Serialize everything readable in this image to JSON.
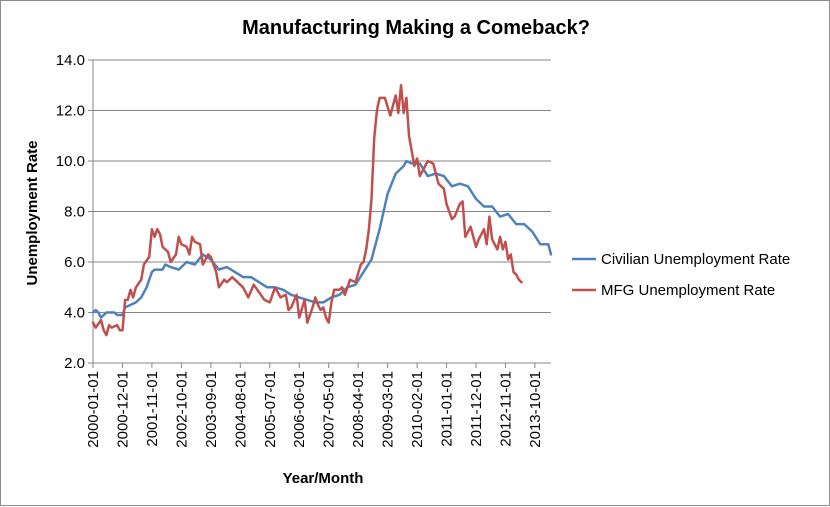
{
  "chart_data": {
    "type": "line",
    "title": "Manufacturing Making a Comeback?",
    "xlabel": "Year/Month",
    "ylabel": "Unemployment Rate",
    "ylim": [
      2.0,
      14.0
    ],
    "y_ticks": [
      "2.0",
      "4.0",
      "6.0",
      "8.0",
      "10.0",
      "12.0",
      "14.0"
    ],
    "x_tick_labels": [
      "2000-01-01",
      "2000-12-01",
      "2001-11-01",
      "2002-10-01",
      "2003-09-01",
      "2004-08-01",
      "2005-07-01",
      "2006-06-01",
      "2007-05-01",
      "2008-04-01",
      "2009-03-01",
      "2010-02-01",
      "2011-01-01",
      "2011-12-01",
      "2012-11-01",
      "2013-10-01"
    ],
    "x_start": "2000-01",
    "x_end": "2014-04",
    "grid": "horizontal",
    "legend_position": "right",
    "series": [
      {
        "name": "Civilian Unemployment Rate",
        "color": "#4f81bd",
        "points": [
          [
            "2000-01",
            4.0
          ],
          [
            "2000-02",
            4.1
          ],
          [
            "2000-03",
            4.0
          ],
          [
            "2000-04",
            3.8
          ],
          [
            "2000-06",
            4.0
          ],
          [
            "2000-09",
            4.0
          ],
          [
            "2000-10",
            3.9
          ],
          [
            "2000-12",
            3.9
          ],
          [
            "2001-01",
            4.2
          ],
          [
            "2001-03",
            4.3
          ],
          [
            "2001-05",
            4.4
          ],
          [
            "2001-07",
            4.6
          ],
          [
            "2001-09",
            5.0
          ],
          [
            "2001-11",
            5.6
          ],
          [
            "2001-12",
            5.7
          ],
          [
            "2002-03",
            5.7
          ],
          [
            "2002-04",
            5.9
          ],
          [
            "2002-06",
            5.8
          ],
          [
            "2002-09",
            5.7
          ],
          [
            "2002-12",
            6.0
          ],
          [
            "2003-03",
            5.9
          ],
          [
            "2003-06",
            6.3
          ],
          [
            "2003-09",
            6.1
          ],
          [
            "2003-12",
            5.7
          ],
          [
            "2004-03",
            5.8
          ],
          [
            "2004-06",
            5.6
          ],
          [
            "2004-09",
            5.4
          ],
          [
            "2004-12",
            5.4
          ],
          [
            "2005-03",
            5.2
          ],
          [
            "2005-06",
            5.0
          ],
          [
            "2005-09",
            5.0
          ],
          [
            "2005-12",
            4.9
          ],
          [
            "2006-03",
            4.7
          ],
          [
            "2006-06",
            4.6
          ],
          [
            "2006-09",
            4.5
          ],
          [
            "2006-12",
            4.4
          ],
          [
            "2007-03",
            4.4
          ],
          [
            "2007-06",
            4.6
          ],
          [
            "2007-09",
            4.7
          ],
          [
            "2007-12",
            5.0
          ],
          [
            "2008-03",
            5.1
          ],
          [
            "2008-06",
            5.6
          ],
          [
            "2008-09",
            6.1
          ],
          [
            "2008-12",
            7.3
          ],
          [
            "2009-03",
            8.7
          ],
          [
            "2009-06",
            9.5
          ],
          [
            "2009-09",
            9.8
          ],
          [
            "2009-10",
            10.0
          ],
          [
            "2009-12",
            9.9
          ],
          [
            "2010-03",
            9.9
          ],
          [
            "2010-06",
            9.4
          ],
          [
            "2010-09",
            9.5
          ],
          [
            "2010-12",
            9.4
          ],
          [
            "2011-03",
            9.0
          ],
          [
            "2011-06",
            9.1
          ],
          [
            "2011-09",
            9.0
          ],
          [
            "2011-12",
            8.5
          ],
          [
            "2012-03",
            8.2
          ],
          [
            "2012-06",
            8.2
          ],
          [
            "2012-09",
            7.8
          ],
          [
            "2012-12",
            7.9
          ],
          [
            "2013-03",
            7.5
          ],
          [
            "2013-06",
            7.5
          ],
          [
            "2013-09",
            7.2
          ],
          [
            "2013-12",
            6.7
          ],
          [
            "2014-03",
            6.7
          ],
          [
            "2014-04",
            6.3
          ]
        ]
      },
      {
        "name": "MFG Unemployment Rate",
        "color": "#c0504d",
        "points": [
          [
            "2000-01",
            3.6
          ],
          [
            "2000-02",
            3.4
          ],
          [
            "2000-04",
            3.7
          ],
          [
            "2000-05",
            3.3
          ],
          [
            "2000-06",
            3.1
          ],
          [
            "2000-07",
            3.5
          ],
          [
            "2000-08",
            3.4
          ],
          [
            "2000-10",
            3.5
          ],
          [
            "2000-11",
            3.3
          ],
          [
            "2000-12",
            3.3
          ],
          [
            "2001-01",
            4.5
          ],
          [
            "2001-02",
            4.5
          ],
          [
            "2001-03",
            4.9
          ],
          [
            "2001-04",
            4.6
          ],
          [
            "2001-05",
            5.0
          ],
          [
            "2001-07",
            5.3
          ],
          [
            "2001-08",
            5.9
          ],
          [
            "2001-10",
            6.2
          ],
          [
            "2001-11",
            7.3
          ],
          [
            "2001-12",
            7.0
          ],
          [
            "2002-01",
            7.3
          ],
          [
            "2002-02",
            7.1
          ],
          [
            "2002-03",
            6.6
          ],
          [
            "2002-05",
            6.4
          ],
          [
            "2002-06",
            6.0
          ],
          [
            "2002-08",
            6.3
          ],
          [
            "2002-09",
            7.0
          ],
          [
            "2002-10",
            6.7
          ],
          [
            "2002-12",
            6.6
          ],
          [
            "2003-01",
            6.3
          ],
          [
            "2003-02",
            7.0
          ],
          [
            "2003-03",
            6.8
          ],
          [
            "2003-05",
            6.7
          ],
          [
            "2003-06",
            5.9
          ],
          [
            "2003-08",
            6.3
          ],
          [
            "2003-09",
            6.2
          ],
          [
            "2003-11",
            5.6
          ],
          [
            "2003-12",
            5.0
          ],
          [
            "2004-02",
            5.3
          ],
          [
            "2004-03",
            5.2
          ],
          [
            "2004-05",
            5.4
          ],
          [
            "2004-07",
            5.2
          ],
          [
            "2004-09",
            5.0
          ],
          [
            "2004-11",
            4.6
          ],
          [
            "2005-01",
            5.1
          ],
          [
            "2005-03",
            4.8
          ],
          [
            "2005-05",
            4.5
          ],
          [
            "2005-07",
            4.4
          ],
          [
            "2005-09",
            5.0
          ],
          [
            "2005-11",
            4.6
          ],
          [
            "2006-01",
            4.7
          ],
          [
            "2006-02",
            4.1
          ],
          [
            "2006-03",
            4.2
          ],
          [
            "2006-05",
            4.7
          ],
          [
            "2006-06",
            3.8
          ],
          [
            "2006-08",
            4.5
          ],
          [
            "2006-09",
            3.6
          ],
          [
            "2006-11",
            4.2
          ],
          [
            "2006-12",
            4.6
          ],
          [
            "2007-01",
            4.3
          ],
          [
            "2007-02",
            4.1
          ],
          [
            "2007-03",
            4.2
          ],
          [
            "2007-04",
            3.8
          ],
          [
            "2007-05",
            3.6
          ],
          [
            "2007-06",
            4.4
          ],
          [
            "2007-07",
            4.9
          ],
          [
            "2007-09",
            4.9
          ],
          [
            "2007-10",
            5.0
          ],
          [
            "2007-11",
            4.7
          ],
          [
            "2008-01",
            5.3
          ],
          [
            "2008-03",
            5.2
          ],
          [
            "2008-05",
            5.9
          ],
          [
            "2008-06",
            6.0
          ],
          [
            "2008-07",
            6.5
          ],
          [
            "2008-08",
            7.3
          ],
          [
            "2008-09",
            8.5
          ],
          [
            "2008-10",
            10.9
          ],
          [
            "2008-11",
            12.0
          ],
          [
            "2008-12",
            12.5
          ],
          [
            "2009-02",
            12.5
          ],
          [
            "2009-04",
            11.8
          ],
          [
            "2009-06",
            12.6
          ],
          [
            "2009-07",
            11.9
          ],
          [
            "2009-08",
            13.0
          ],
          [
            "2009-09",
            11.9
          ],
          [
            "2009-10",
            12.5
          ],
          [
            "2009-11",
            11.0
          ],
          [
            "2010-01",
            9.8
          ],
          [
            "2010-02",
            10.1
          ],
          [
            "2010-03",
            9.4
          ],
          [
            "2010-06",
            10.0
          ],
          [
            "2010-08",
            9.9
          ],
          [
            "2010-10",
            9.1
          ],
          [
            "2010-12",
            8.9
          ],
          [
            "2011-01",
            8.3
          ],
          [
            "2011-03",
            7.7
          ],
          [
            "2011-04",
            7.8
          ],
          [
            "2011-06",
            8.3
          ],
          [
            "2011-07",
            8.4
          ],
          [
            "2011-08",
            7.0
          ],
          [
            "2011-10",
            7.4
          ],
          [
            "2011-12",
            6.6
          ],
          [
            "2012-01",
            6.9
          ],
          [
            "2012-03",
            7.3
          ],
          [
            "2012-04",
            6.7
          ],
          [
            "2012-05",
            7.8
          ],
          [
            "2012-06",
            6.9
          ],
          [
            "2012-08",
            6.5
          ],
          [
            "2012-09",
            7.0
          ],
          [
            "2012-10",
            6.5
          ],
          [
            "2012-11",
            6.8
          ],
          [
            "2012-12",
            6.1
          ],
          [
            "2013-01",
            6.3
          ],
          [
            "2013-02",
            5.6
          ],
          [
            "2013-03",
            5.5
          ],
          [
            "2013-04",
            5.3
          ],
          [
            "2013-05",
            5.2
          ]
        ]
      }
    ]
  }
}
